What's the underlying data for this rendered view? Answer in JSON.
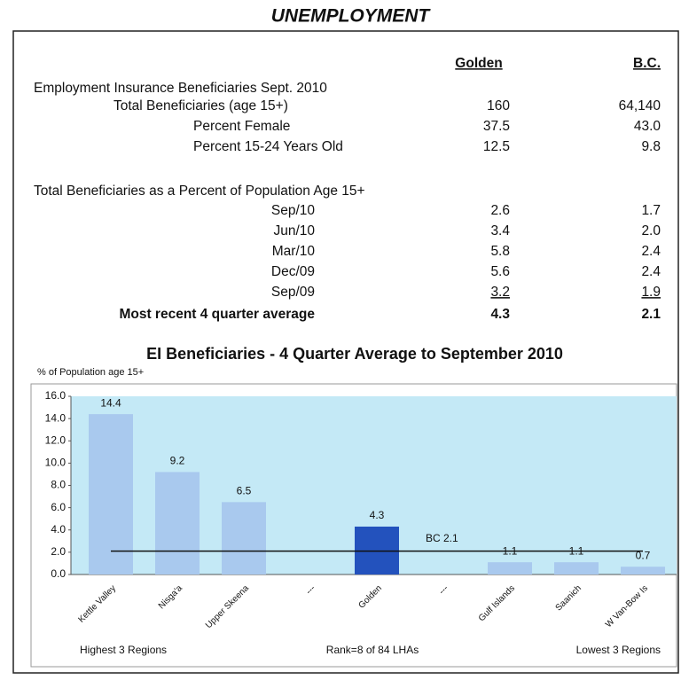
{
  "title": "UNEMPLOYMENT",
  "table": {
    "columns": [
      "Golden",
      "B.C."
    ],
    "sections": [
      {
        "heading": "Employment Insurance Beneficiaries Sept. 2010",
        "rows": [
          [
            "Total Beneficiaries (age 15+)",
            "160",
            "64,140"
          ],
          [
            "Percent Female",
            "37.5",
            "43.0"
          ],
          [
            "Percent 15-24 Years Old",
            "12.5",
            "9.8"
          ]
        ]
      },
      {
        "heading": "Total Beneficiaries as a Percent of  Population Age 15+",
        "rows": [
          [
            "Sep/10",
            "2.6",
            "1.7"
          ],
          [
            "Jun/10",
            "3.4",
            "2.0"
          ],
          [
            "Mar/10",
            "5.8",
            "2.4"
          ],
          [
            "Dec/09",
            "5.6",
            "2.4"
          ],
          [
            "Sep/09",
            "3.2",
            "1.9"
          ],
          [
            "Most recent 4 quarter average",
            "4.3",
            "2.1"
          ]
        ]
      }
    ]
  },
  "chart_data": {
    "type": "bar",
    "title": "EI Beneficiaries - 4 Quarter Average to September 2010",
    "y_label": "% of Population age 15+",
    "categories": [
      "Kettle Valley",
      "Nisga'a",
      "Upper Skeena",
      "---",
      "Golden",
      "---",
      "Gulf Islands",
      "Saanich",
      "W Van-Bow Is"
    ],
    "values": [
      14.4,
      9.2,
      6.5,
      null,
      4.3,
      null,
      1.1,
      1.1,
      0.7
    ],
    "colors": [
      "#a9c9ee",
      "#a9c9ee",
      "#a9c9ee",
      "#a9c9ee",
      "#2352bd",
      "#a9c9ee",
      "#a9c9ee",
      "#a9c9ee",
      "#a9c9ee"
    ],
    "ylim": [
      0,
      16
    ],
    "yticks": [
      {
        "value": 0,
        "label": "0.0"
      },
      {
        "value": 2,
        "label": "2.0"
      },
      {
        "value": 4,
        "label": "4.0"
      },
      {
        "value": 6,
        "label": "6.0"
      },
      {
        "value": 8,
        "label": "8.0"
      },
      {
        "value": 10,
        "label": "10.0"
      },
      {
        "value": 12,
        "label": "12.0"
      },
      {
        "value": 14,
        "label": "14.0"
      },
      {
        "value": 16,
        "label": "16.0"
      }
    ],
    "reference_line": {
      "label": "BC 2.1",
      "value": 2.1
    },
    "footnotes": [
      "Highest 3 Regions",
      "Rank=8 of 84 LHAs",
      "Lowest 3 Regions"
    ]
  }
}
